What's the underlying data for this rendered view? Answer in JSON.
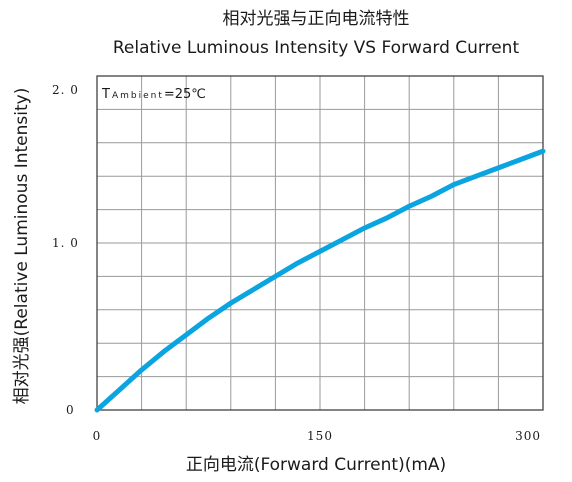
{
  "chart_data": {
    "type": "line",
    "title": "相对光强与正向电流特性",
    "subtitle": "Relative Luminous Intensity VS Forward Current",
    "xlabel": "正向电流(Forward Current)(mA)",
    "ylabel": "相对光强(Relative Luminous Intensity)",
    "xlim": [
      0,
      300
    ],
    "ylim": [
      0,
      2.0
    ],
    "x_ticks": [
      {
        "value": 0,
        "label": "0"
      },
      {
        "value": 150,
        "label": "150"
      },
      {
        "value": 300,
        "label": "300"
      }
    ],
    "y_ticks": [
      {
        "value": 0,
        "label": "0"
      },
      {
        "value": 1.0,
        "label": "1. 0"
      },
      {
        "value": 2.0,
        "label": "2. 0"
      }
    ],
    "grid": true,
    "grid_divisions": {
      "x": 10,
      "y": 10
    },
    "annotation": {
      "main": "T",
      "sub": "Ambient",
      "rest": "=25℃"
    },
    "series": [
      {
        "color": "#0aa5e0",
        "x": [
          0,
          15,
          30,
          45,
          60,
          75,
          90,
          105,
          120,
          135,
          150,
          165,
          180,
          195,
          210,
          225,
          240,
          255,
          270,
          285,
          300
        ],
        "y": [
          0,
          0.12,
          0.24,
          0.35,
          0.45,
          0.55,
          0.64,
          0.72,
          0.8,
          0.88,
          0.95,
          1.02,
          1.09,
          1.15,
          1.22,
          1.28,
          1.35,
          1.4,
          1.45,
          1.5,
          1.55
        ]
      }
    ]
  }
}
